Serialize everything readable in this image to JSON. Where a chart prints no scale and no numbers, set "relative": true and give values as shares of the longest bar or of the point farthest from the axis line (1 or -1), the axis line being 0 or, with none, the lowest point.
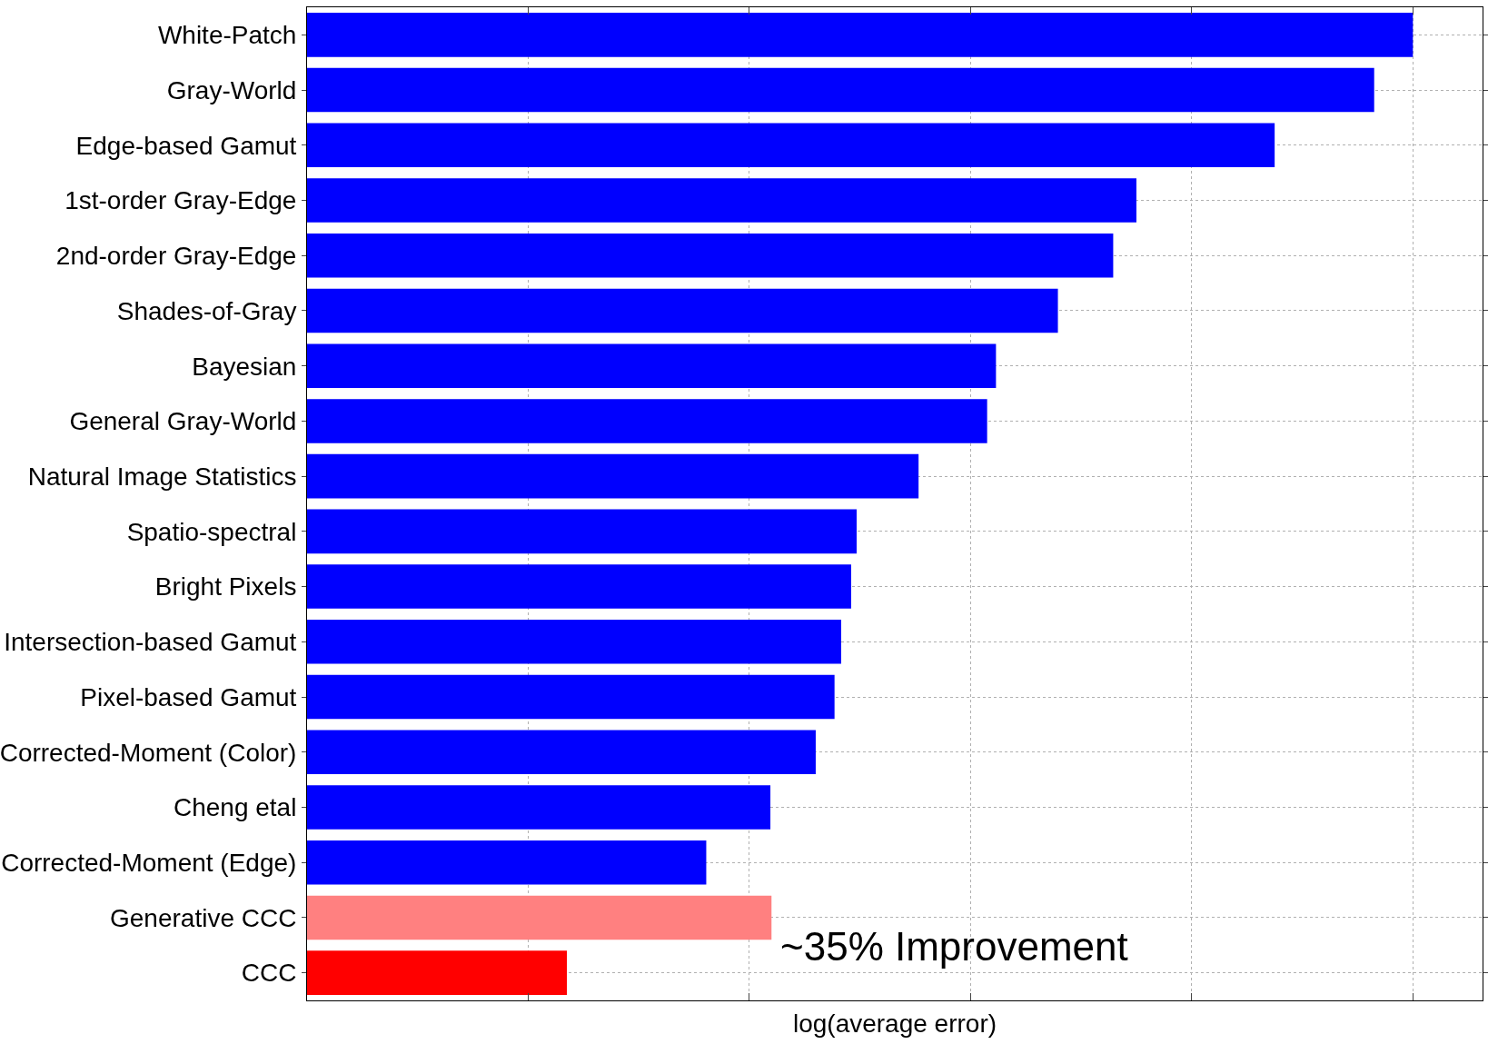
{
  "chart_data": {
    "type": "bar",
    "orientation": "horizontal",
    "relative": true,
    "xlabel": "log(average error)",
    "categories": [
      "White-Patch",
      "Gray-World",
      "Edge-based Gamut",
      "1st-order Gray-Edge",
      "2nd-order Gray-Edge",
      "Shades-of-Gray",
      "Bayesian",
      "General Gray-World",
      "Natural Image Statistics",
      "Spatio-spectral",
      "Bright Pixels",
      "Intersection-based Gamut",
      "Pixel-based Gamut",
      "Corrected-Moment (Color)",
      "Cheng etal",
      "Corrected-Moment (Edge)",
      "Generative CCC",
      "CCC"
    ],
    "values": [
      1,
      0.965,
      0.875,
      0.75,
      0.729,
      0.679,
      0.623,
      0.615,
      0.553,
      0.497,
      0.492,
      0.483,
      0.477,
      0.46,
      0.419,
      0.361,
      0.42,
      0.235
    ],
    "colors": [
      "#0000ff",
      "#0000ff",
      "#0000ff",
      "#0000ff",
      "#0000ff",
      "#0000ff",
      "#0000ff",
      "#0000ff",
      "#0000ff",
      "#0000ff",
      "#0000ff",
      "#0000ff",
      "#0000ff",
      "#0000ff",
      "#0000ff",
      "#0000ff",
      "#ff8080",
      "#ff0000"
    ],
    "annotations": [
      "~35% Improvement"
    ],
    "grid": true
  }
}
